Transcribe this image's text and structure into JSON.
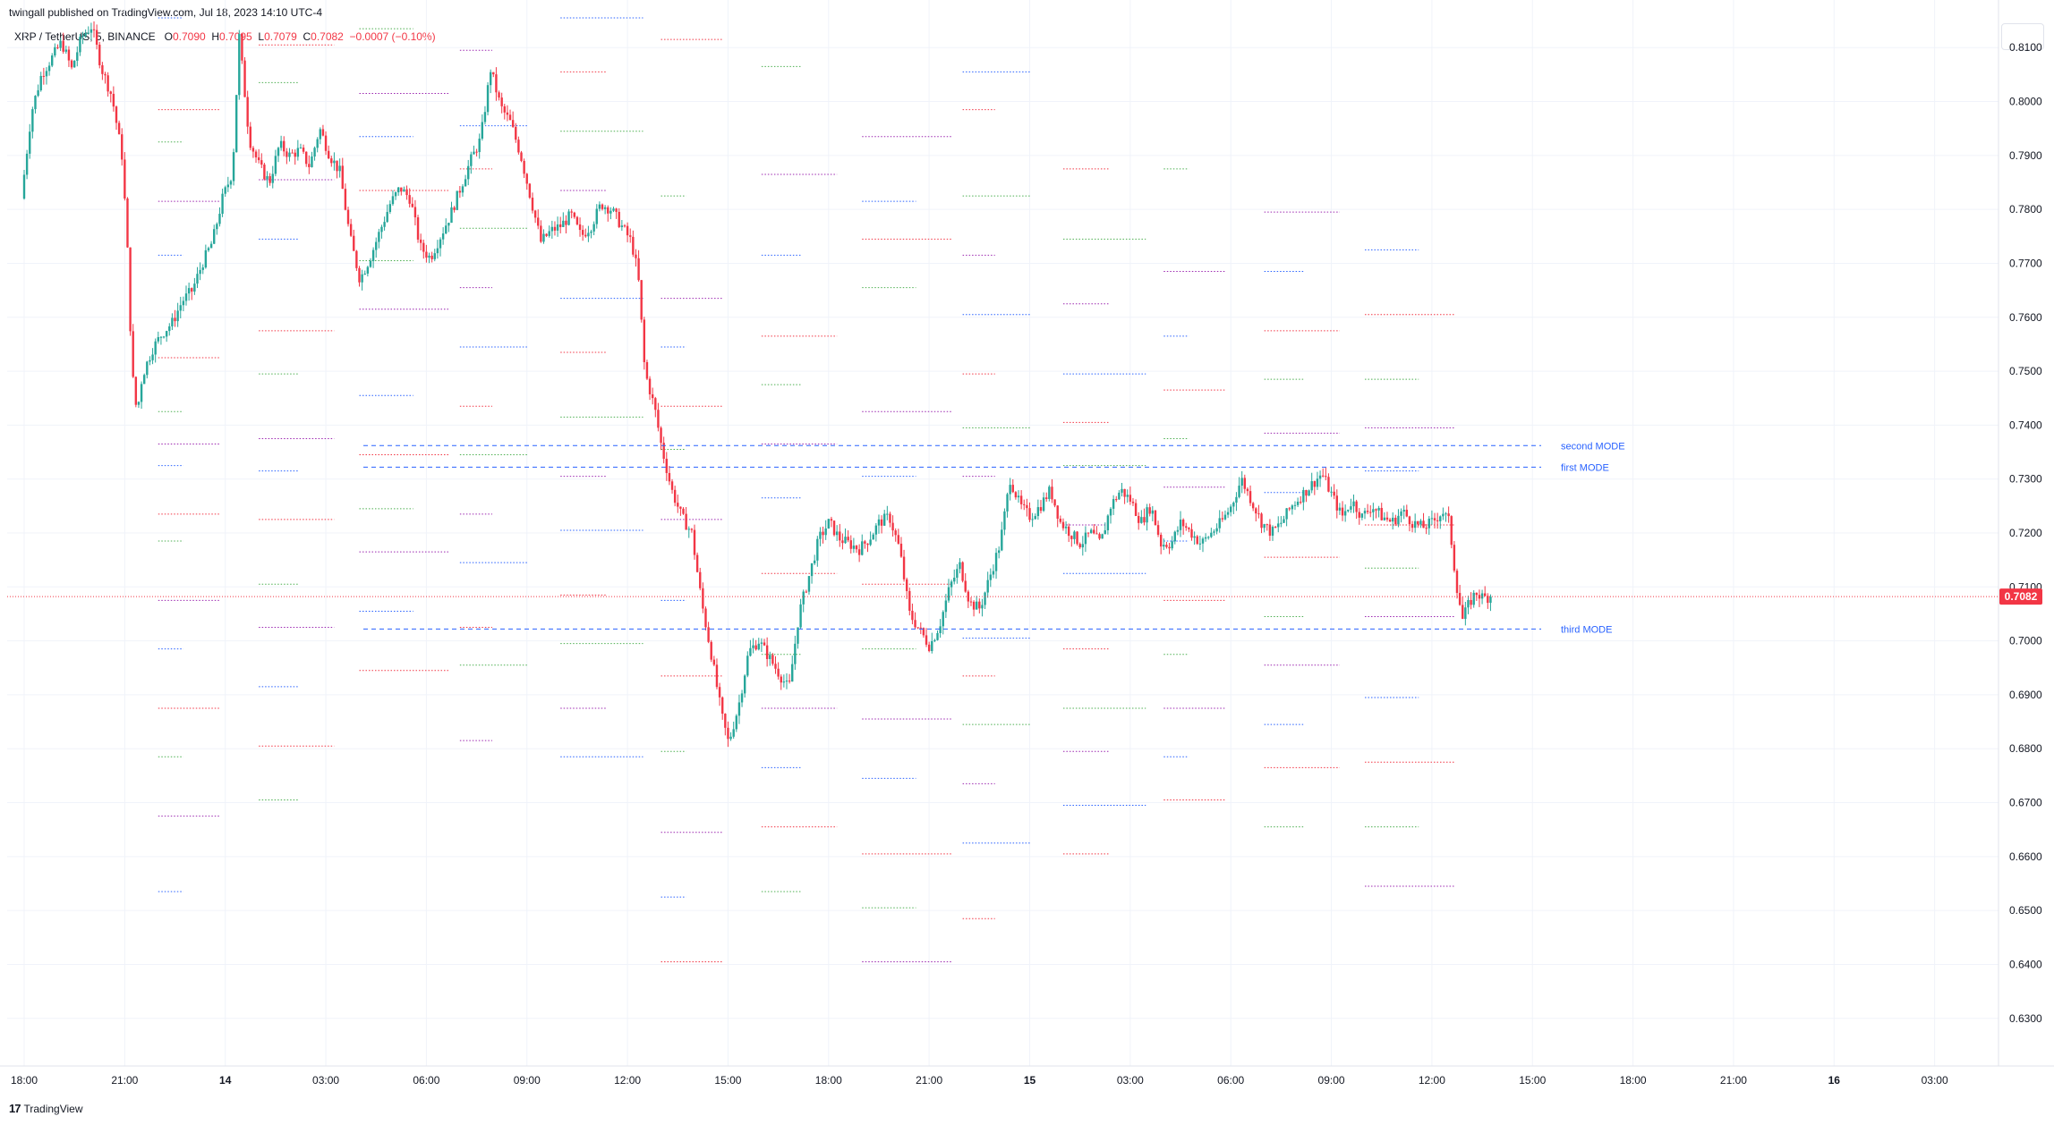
{
  "header": {
    "publish_text": "twingall published on TradingView.com, Jul 18, 2023 14:10 UTC-4"
  },
  "legend": {
    "symbol": "XRP / TetherUS, 5, BINANCE",
    "open_label": "O",
    "open": "0.7090",
    "high_label": "H",
    "high": "0.7095",
    "low_label": "L",
    "low": "0.7079",
    "close_label": "C",
    "close": "0.7082",
    "change": "−0.0007 (−0.10%)"
  },
  "footer": {
    "brand": "TradingView",
    "logo": "17"
  },
  "colors": {
    "up": "#26a69a",
    "down": "#f23645",
    "mode_line": "#2962ff",
    "profile_red": "#f23645",
    "profile_green": "#4caf50",
    "profile_blue": "#2962ff",
    "profile_purple": "#9c27b0"
  },
  "chart_data": {
    "type": "candlestick",
    "ylim": [
      0.6225,
      0.8175
    ],
    "y_ticks": [
      "0.8100",
      "0.8000",
      "0.7900",
      "0.7800",
      "0.7700",
      "0.7600",
      "0.7500",
      "0.7400",
      "0.7300",
      "0.7200",
      "0.7100",
      "0.7000",
      "0.6900",
      "0.6800",
      "0.6700",
      "0.6600",
      "0.6500",
      "0.6400",
      "0.6300"
    ],
    "x_ticks": [
      {
        "label": "18:00",
        "hour": 0,
        "bold": false
      },
      {
        "label": "21:00",
        "hour": 3,
        "bold": false
      },
      {
        "label": "14",
        "hour": 6,
        "bold": true
      },
      {
        "label": "03:00",
        "hour": 9,
        "bold": false
      },
      {
        "label": "06:00",
        "hour": 12,
        "bold": false
      },
      {
        "label": "09:00",
        "hour": 15,
        "bold": false
      },
      {
        "label": "12:00",
        "hour": 18,
        "bold": false
      },
      {
        "label": "15:00",
        "hour": 21,
        "bold": false
      },
      {
        "label": "18:00",
        "hour": 24,
        "bold": false
      },
      {
        "label": "21:00",
        "hour": 27,
        "bold": false
      },
      {
        "label": "15",
        "hour": 30,
        "bold": true
      },
      {
        "label": "03:00",
        "hour": 33,
        "bold": false
      },
      {
        "label": "06:00",
        "hour": 36,
        "bold": false
      },
      {
        "label": "09:00",
        "hour": 39,
        "bold": false
      },
      {
        "label": "12:00",
        "hour": 42,
        "bold": false
      },
      {
        "label": "15:00",
        "hour": 45,
        "bold": false
      },
      {
        "label": "18:00",
        "hour": 48,
        "bold": false
      },
      {
        "label": "21:00",
        "hour": 51,
        "bold": false
      },
      {
        "label": "16",
        "hour": 54,
        "bold": true
      },
      {
        "label": "03:00",
        "hour": 57,
        "bold": false
      }
    ],
    "last_price": "0.7082",
    "mode_lines": [
      {
        "label": "second MODE",
        "price": 0.7362
      },
      {
        "label": "first MODE",
        "price": 0.7322
      },
      {
        "label": "third MODE",
        "price": 0.7022
      }
    ],
    "price_path": [
      [
        0.0,
        0.782
      ],
      [
        0.3,
        0.798
      ],
      [
        0.6,
        0.805
      ],
      [
        0.9,
        0.808
      ],
      [
        1.2,
        0.811
      ],
      [
        1.5,
        0.806
      ],
      [
        1.8,
        0.812
      ],
      [
        2.1,
        0.814
      ],
      [
        2.4,
        0.806
      ],
      [
        2.7,
        0.801
      ],
      [
        3.0,
        0.79
      ],
      [
        3.15,
        0.775
      ],
      [
        3.3,
        0.75
      ],
      [
        3.45,
        0.742
      ],
      [
        3.6,
        0.749
      ],
      [
        3.9,
        0.754
      ],
      [
        4.2,
        0.757
      ],
      [
        4.5,
        0.759
      ],
      [
        4.8,
        0.763
      ],
      [
        5.1,
        0.765
      ],
      [
        5.4,
        0.77
      ],
      [
        5.7,
        0.774
      ],
      [
        6.0,
        0.782
      ],
      [
        6.3,
        0.787
      ],
      [
        6.5,
        0.812
      ],
      [
        6.8,
        0.793
      ],
      [
        7.1,
        0.788
      ],
      [
        7.4,
        0.785
      ],
      [
        7.7,
        0.792
      ],
      [
        8.0,
        0.79
      ],
      [
        8.3,
        0.791
      ],
      [
        8.6,
        0.788
      ],
      [
        8.9,
        0.795
      ],
      [
        9.2,
        0.79
      ],
      [
        9.5,
        0.787
      ],
      [
        9.8,
        0.775
      ],
      [
        10.1,
        0.767
      ],
      [
        10.4,
        0.771
      ],
      [
        10.7,
        0.776
      ],
      [
        11.0,
        0.781
      ],
      [
        11.3,
        0.784
      ],
      [
        11.6,
        0.782
      ],
      [
        11.9,
        0.773
      ],
      [
        12.2,
        0.771
      ],
      [
        12.5,
        0.775
      ],
      [
        12.8,
        0.779
      ],
      [
        13.1,
        0.784
      ],
      [
        13.4,
        0.789
      ],
      [
        13.7,
        0.793
      ],
      [
        14.0,
        0.806
      ],
      [
        14.3,
        0.799
      ],
      [
        14.6,
        0.796
      ],
      [
        14.9,
        0.79
      ],
      [
        15.2,
        0.782
      ],
      [
        15.5,
        0.774
      ],
      [
        15.8,
        0.776
      ],
      [
        16.1,
        0.777
      ],
      [
        16.4,
        0.779
      ],
      [
        16.7,
        0.775
      ],
      [
        17.0,
        0.777
      ],
      [
        17.3,
        0.781
      ],
      [
        17.6,
        0.78
      ],
      [
        17.9,
        0.777
      ],
      [
        18.2,
        0.774
      ],
      [
        18.4,
        0.768
      ],
      [
        18.6,
        0.75
      ],
      [
        18.9,
        0.743
      ],
      [
        19.1,
        0.736
      ],
      [
        19.4,
        0.728
      ],
      [
        19.7,
        0.723
      ],
      [
        20.0,
        0.72
      ],
      [
        20.3,
        0.707
      ],
      [
        20.6,
        0.697
      ],
      [
        20.9,
        0.686
      ],
      [
        21.1,
        0.681
      ],
      [
        21.4,
        0.688
      ],
      [
        21.7,
        0.698
      ],
      [
        22.0,
        0.7
      ],
      [
        22.3,
        0.697
      ],
      [
        22.6,
        0.694
      ],
      [
        22.9,
        0.691
      ],
      [
        23.2,
        0.705
      ],
      [
        23.5,
        0.712
      ],
      [
        23.8,
        0.719
      ],
      [
        24.1,
        0.722
      ],
      [
        24.4,
        0.719
      ],
      [
        24.7,
        0.718
      ],
      [
        25.0,
        0.717
      ],
      [
        25.3,
        0.719
      ],
      [
        25.6,
        0.722
      ],
      [
        25.9,
        0.723
      ],
      [
        26.2,
        0.717
      ],
      [
        26.5,
        0.705
      ],
      [
        26.8,
        0.702
      ],
      [
        27.1,
        0.699
      ],
      [
        27.4,
        0.703
      ],
      [
        27.7,
        0.71
      ],
      [
        28.0,
        0.714
      ],
      [
        28.3,
        0.707
      ],
      [
        28.6,
        0.706
      ],
      [
        28.9,
        0.712
      ],
      [
        29.2,
        0.718
      ],
      [
        29.5,
        0.73
      ],
      [
        29.8,
        0.725
      ],
      [
        30.1,
        0.723
      ],
      [
        30.4,
        0.725
      ],
      [
        30.7,
        0.728
      ],
      [
        31.0,
        0.722
      ],
      [
        31.3,
        0.72
      ],
      [
        31.6,
        0.718
      ],
      [
        31.9,
        0.72
      ],
      [
        32.2,
        0.718
      ],
      [
        32.5,
        0.725
      ],
      [
        32.8,
        0.728
      ],
      [
        33.1,
        0.726
      ],
      [
        33.4,
        0.722
      ],
      [
        33.7,
        0.725
      ],
      [
        34.0,
        0.718
      ],
      [
        34.3,
        0.718
      ],
      [
        34.6,
        0.722
      ],
      [
        34.9,
        0.72
      ],
      [
        35.2,
        0.718
      ],
      [
        35.5,
        0.72
      ],
      [
        35.8,
        0.722
      ],
      [
        36.1,
        0.725
      ],
      [
        36.4,
        0.73
      ],
      [
        36.7,
        0.726
      ],
      [
        37.0,
        0.722
      ],
      [
        37.3,
        0.72
      ],
      [
        37.6,
        0.722
      ],
      [
        37.9,
        0.725
      ],
      [
        38.2,
        0.727
      ],
      [
        38.5,
        0.729
      ],
      [
        38.8,
        0.731
      ],
      [
        39.1,
        0.727
      ],
      [
        39.4,
        0.723
      ],
      [
        39.7,
        0.726
      ],
      [
        40.0,
        0.723
      ],
      [
        40.3,
        0.725
      ],
      [
        40.6,
        0.723
      ],
      [
        40.9,
        0.722
      ],
      [
        41.2,
        0.724
      ],
      [
        41.5,
        0.722
      ],
      [
        41.8,
        0.721
      ],
      [
        42.1,
        0.722
      ],
      [
        42.4,
        0.724
      ],
      [
        42.6,
        0.722
      ],
      [
        42.8,
        0.711
      ],
      [
        43.0,
        0.704
      ],
      [
        43.2,
        0.707
      ],
      [
        43.4,
        0.709
      ],
      [
        43.6,
        0.708
      ],
      [
        43.8,
        0.7082
      ]
    ],
    "volume_profiles": [
      {
        "hours": [
          4.0,
          7.0
        ],
        "levels": [
          0.8155,
          0.7985,
          0.7925,
          0.7815,
          0.7715,
          0.7525,
          0.7425,
          0.7365,
          0.7325,
          0.7235,
          0.7185,
          0.7075,
          0.6985,
          0.6875,
          0.6785,
          0.6675,
          0.6535
        ]
      },
      {
        "hours": [
          7.0,
          10.0
        ],
        "levels": [
          0.8105,
          0.8035,
          0.7855,
          0.7745,
          0.7575,
          0.7495,
          0.7375,
          0.7315,
          0.7225,
          0.7105,
          0.7025,
          0.6915,
          0.6805,
          0.6705
        ]
      },
      {
        "hours": [
          10.0,
          13.0
        ],
        "levels": [
          0.8135,
          0.8015,
          0.7935,
          0.7835,
          0.7705,
          0.7615,
          0.7455,
          0.7345,
          0.7245,
          0.7165,
          0.7055,
          0.6945
        ]
      },
      {
        "hours": [
          13.0,
          16.0
        ],
        "levels": [
          0.8095,
          0.7955,
          0.7875,
          0.7765,
          0.7655,
          0.7545,
          0.7435,
          0.7345,
          0.7235,
          0.7145,
          0.7025,
          0.6955,
          0.6815
        ]
      },
      {
        "hours": [
          16.0,
          19.0
        ],
        "levels": [
          0.8155,
          0.8055,
          0.7945,
          0.7835,
          0.7635,
          0.7535,
          0.7415,
          0.7305,
          0.7205,
          0.7085,
          0.6995,
          0.6875,
          0.6785
        ]
      },
      {
        "hours": [
          19.0,
          22.0
        ],
        "levels": [
          0.8115,
          0.7825,
          0.7635,
          0.7545,
          0.7435,
          0.7355,
          0.7225,
          0.7075,
          0.6935,
          0.6795,
          0.6645,
          0.6525,
          0.6405
        ]
      },
      {
        "hours": [
          22.0,
          25.0
        ],
        "levels": [
          0.8065,
          0.7865,
          0.7715,
          0.7565,
          0.7475,
          0.7365,
          0.7265,
          0.7125,
          0.6975,
          0.6875,
          0.6765,
          0.6655,
          0.6535
        ]
      },
      {
        "hours": [
          25.0,
          28.0
        ],
        "levels": [
          0.7935,
          0.7815,
          0.7745,
          0.7655,
          0.7425,
          0.7305,
          0.7105,
          0.6985,
          0.6855,
          0.6745,
          0.6605,
          0.6505,
          0.6405
        ]
      },
      {
        "hours": [
          28.0,
          31.0
        ],
        "levels": [
          0.8055,
          0.7985,
          0.7825,
          0.7715,
          0.7605,
          0.7495,
          0.7395,
          0.7305,
          0.7005,
          0.6935,
          0.6845,
          0.6735,
          0.6625,
          0.6485
        ]
      },
      {
        "hours": [
          31.0,
          34.0
        ],
        "levels": [
          0.7875,
          0.7745,
          0.7625,
          0.7495,
          0.7405,
          0.7325,
          0.7215,
          0.7125,
          0.6985,
          0.6875,
          0.6795,
          0.6695,
          0.6605
        ]
      },
      {
        "hours": [
          34.0,
          37.0
        ],
        "levels": [
          0.7875,
          0.7685,
          0.7565,
          0.7465,
          0.7375,
          0.7285,
          0.7185,
          0.7075,
          0.6975,
          0.6875,
          0.6785,
          0.6705
        ]
      },
      {
        "hours": [
          37.0,
          40.0
        ],
        "levels": [
          0.7795,
          0.7685,
          0.7575,
          0.7485,
          0.7385,
          0.7275,
          0.7155,
          0.7045,
          0.6955,
          0.6845,
          0.6765,
          0.6655
        ]
      },
      {
        "hours": [
          40.0,
          43.0
        ],
        "levels": [
          0.7725,
          0.7605,
          0.7485,
          0.7395,
          0.7315,
          0.7215,
          0.7135,
          0.7045,
          0.6895,
          0.6775,
          0.6655,
          0.6545
        ]
      }
    ]
  }
}
